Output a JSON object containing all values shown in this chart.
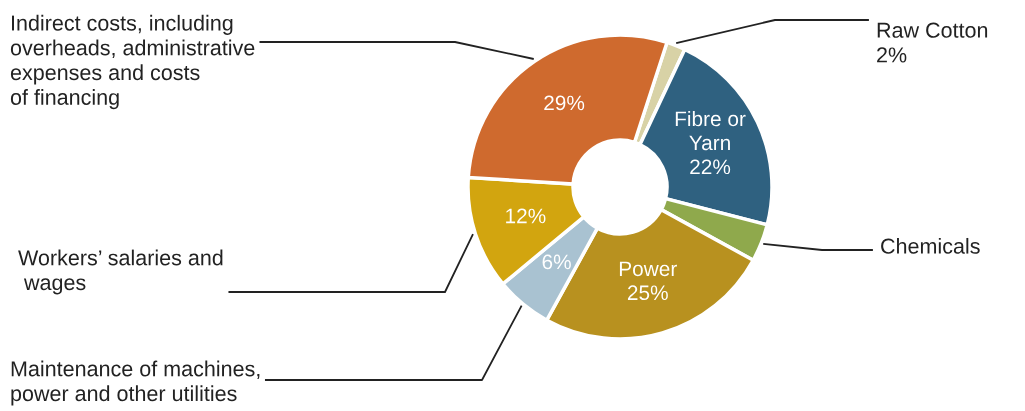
{
  "chart_data": {
    "type": "donut",
    "categories": [
      "Raw Cotton",
      "Fibre or\nYarn",
      "Chemicals",
      "Power",
      "Maintenance of machines,\npower and other utilities",
      "Workers’ salaries and\n wages",
      "Indirect costs, including\noverheads, administrative\nexpenses and costs\nof financing"
    ],
    "values": [
      2,
      22,
      4,
      25,
      6,
      12,
      29
    ],
    "value_labels": [
      "2%",
      "22%",
      null,
      "25%",
      "6%",
      "12%",
      "29%"
    ],
    "colors": [
      "#d8d2a6",
      "#2f6180",
      "#8fa94c",
      "#b8911f",
      "#a9c2d1",
      "#d2a50f",
      "#cf6a2e"
    ]
  }
}
